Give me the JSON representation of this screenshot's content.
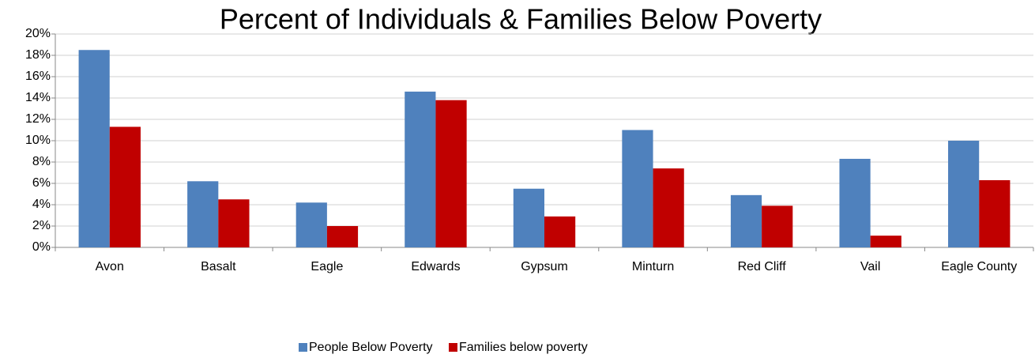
{
  "chart_data": {
    "type": "bar",
    "title": "Percent of Individuals & Families Below Poverty",
    "categories": [
      "Avon",
      "Basalt",
      "Eagle",
      "Edwards",
      "Gypsum",
      "Minturn",
      "Red Cliff",
      "Vail",
      "Eagle County"
    ],
    "series": [
      {
        "name": "People Below Poverty",
        "color": "#4f81bd",
        "values": [
          18.5,
          6.2,
          4.2,
          14.6,
          5.5,
          11.0,
          4.9,
          8.3,
          10.0
        ]
      },
      {
        "name": "Families below poverty",
        "color": "#c00000",
        "values": [
          11.3,
          4.5,
          2.0,
          13.8,
          2.9,
          7.4,
          3.9,
          1.1,
          6.3
        ]
      }
    ],
    "ylim": [
      0,
      20
    ],
    "yticks": [
      {
        "value": 0,
        "label": "0%"
      },
      {
        "value": 2,
        "label": "2%"
      },
      {
        "value": 4,
        "label": "4%"
      },
      {
        "value": 6,
        "label": "6%"
      },
      {
        "value": 8,
        "label": "8%"
      },
      {
        "value": 10,
        "label": "10%"
      },
      {
        "value": 12,
        "label": "12%"
      },
      {
        "value": 14,
        "label": "14%"
      },
      {
        "value": 16,
        "label": "16%"
      },
      {
        "value": 18,
        "label": "18%"
      },
      {
        "value": 20,
        "label": "20%"
      }
    ],
    "grid": true,
    "legend": "bottom"
  }
}
